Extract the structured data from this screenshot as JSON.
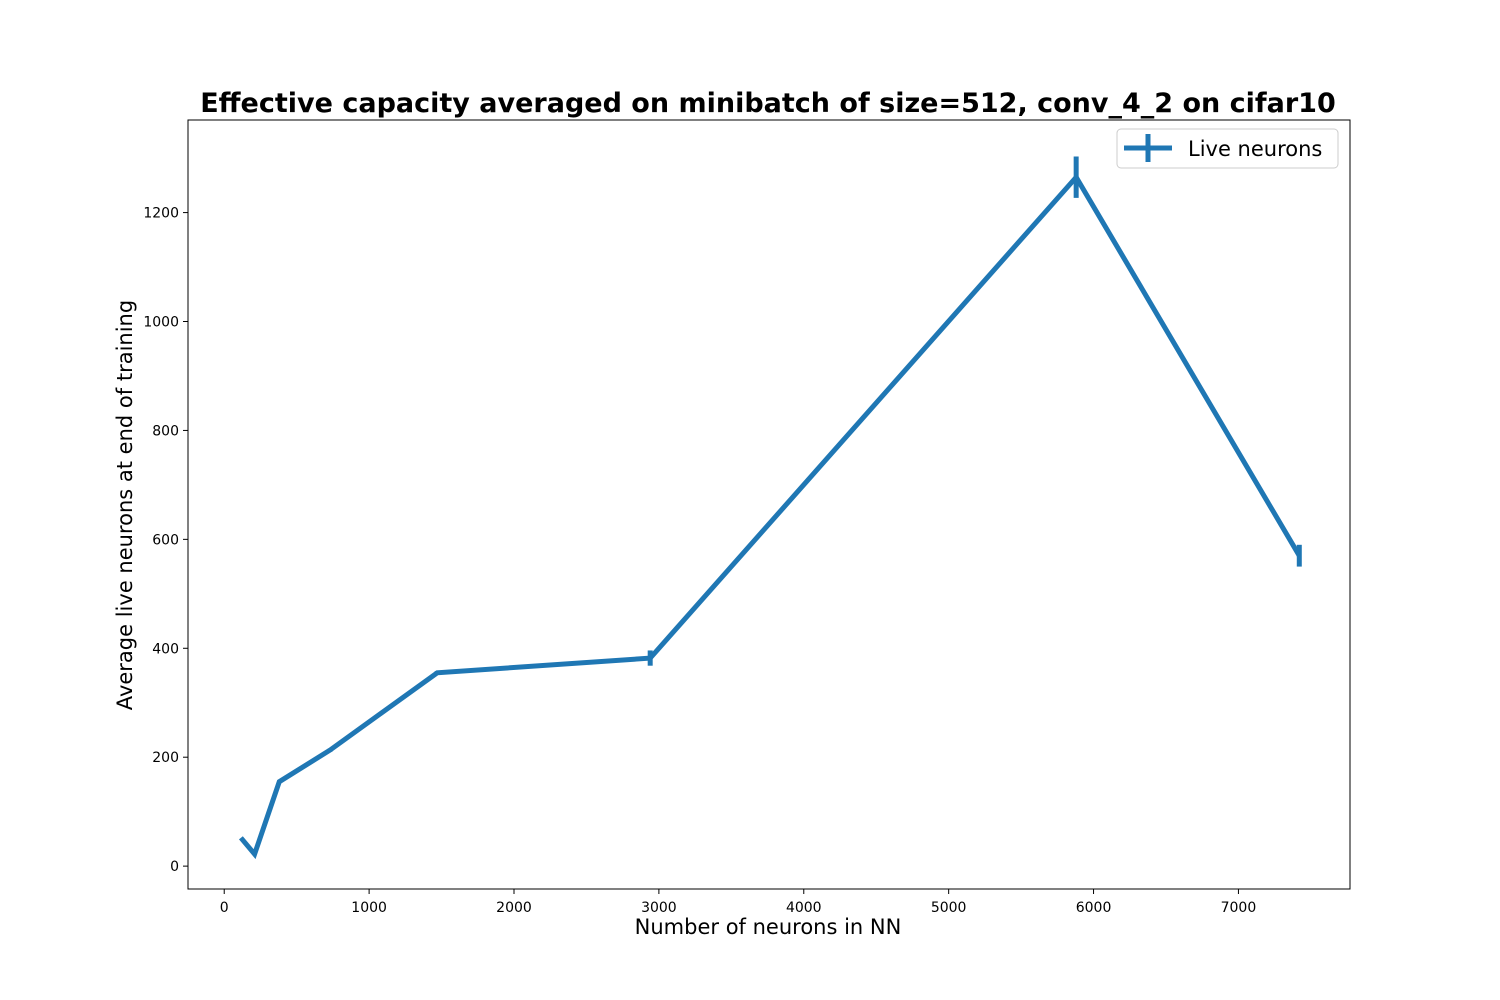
{
  "chart_data": {
    "type": "line",
    "title": "Effective capacity averaged on minibatch of size=512, conv_4_2 on cifar10",
    "xlabel": "Number of neurons in NN",
    "ylabel": "Average live neurons at end of training",
    "xlim": [
      -250,
      7770
    ],
    "ylim": [
      -42,
      1370
    ],
    "xticks": [
      0,
      1000,
      2000,
      3000,
      4000,
      5000,
      6000,
      7000
    ],
    "yticks": [
      0,
      200,
      400,
      600,
      800,
      1000,
      1200
    ],
    "grid": false,
    "legend_position": "top-right",
    "series": [
      {
        "name": "Live neurons",
        "color": "#1f77b4",
        "x": [
          115,
          210,
          380,
          730,
          1470,
          2940,
          5880,
          7420
        ],
        "y": [
          52,
          22,
          155,
          213,
          355,
          382,
          1265,
          570
        ],
        "yerr": [
          0,
          0,
          0,
          3,
          3,
          14,
          38,
          20
        ]
      }
    ]
  }
}
